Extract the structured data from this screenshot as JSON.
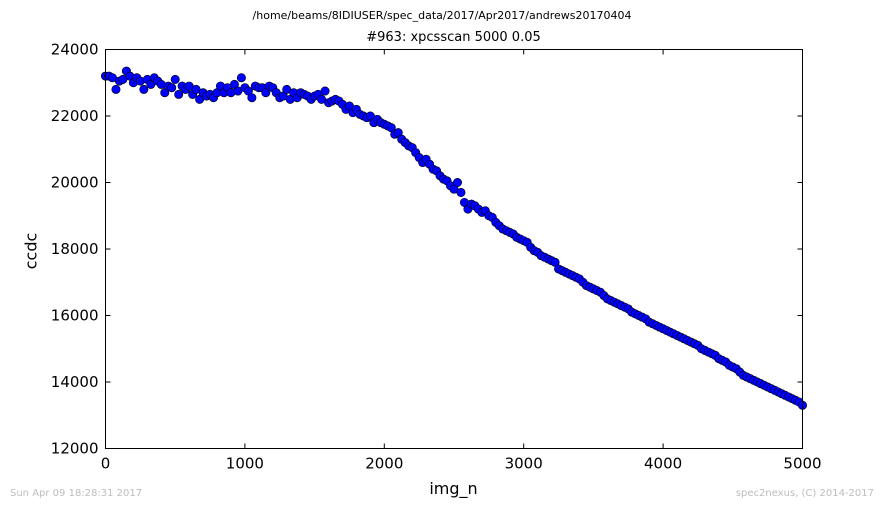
{
  "header": {
    "path": "/home/beams/8IDIUSER/spec_data/2017/Apr2017/andrews20170404"
  },
  "footer": {
    "timestamp": "Sun Apr 09 18:28:31 2017",
    "credit": "spec2nexus, (C) 2014-2017"
  },
  "chart_data": {
    "type": "scatter",
    "title": "#963: xpcsscan 5000 0.05",
    "xlabel": "img_n",
    "ylabel": "ccdc",
    "xlim": [
      0,
      5000
    ],
    "ylim": [
      12000,
      24000
    ],
    "xticks": [
      0,
      1000,
      2000,
      3000,
      4000,
      5000
    ],
    "yticks": [
      12000,
      14000,
      16000,
      18000,
      20000,
      22000,
      24000
    ],
    "grid": false,
    "marker_color": "#0000ff",
    "series": [
      {
        "x": [
          0,
          25,
          50,
          75,
          100,
          125,
          150,
          175,
          200,
          225,
          250,
          275,
          300,
          325,
          350,
          375,
          400,
          425,
          450,
          475,
          500,
          525,
          550,
          575,
          600,
          625,
          650,
          675,
          700,
          725,
          750,
          775,
          800,
          825,
          850,
          875,
          900,
          925,
          950,
          975,
          1000,
          1025,
          1050,
          1075,
          1100,
          1125,
          1150,
          1175,
          1200,
          1225,
          1250,
          1275,
          1300,
          1325,
          1350,
          1375,
          1400,
          1425,
          1450,
          1475,
          1500,
          1525,
          1550,
          1575,
          1600,
          1625,
          1650,
          1675,
          1700,
          1725,
          1750,
          1775,
          1800,
          1825,
          1850,
          1875,
          1900,
          1925,
          1950,
          1975,
          2000,
          2025,
          2050,
          2075,
          2100,
          2125,
          2150,
          2175,
          2200,
          2225,
          2250,
          2275,
          2300,
          2325,
          2350,
          2375,
          2400,
          2425,
          2450,
          2475,
          2500,
          2525,
          2550,
          2575,
          2600,
          2625,
          2650,
          2675,
          2700,
          2725,
          2750,
          2775,
          2800,
          2825,
          2850,
          2875,
          2900,
          2925,
          2950,
          2975,
          3000,
          3025,
          3050,
          3075,
          3100,
          3125,
          3150,
          3175,
          3200,
          3225,
          3250,
          3275,
          3300,
          3325,
          3350,
          3375,
          3400,
          3425,
          3450,
          3475,
          3500,
          3525,
          3550,
          3575,
          3600,
          3625,
          3650,
          3675,
          3700,
          3725,
          3750,
          3775,
          3800,
          3825,
          3850,
          3875,
          3900,
          3925,
          3950,
          3975,
          4000,
          4025,
          4050,
          4075,
          4100,
          4125,
          4150,
          4175,
          4200,
          4225,
          4250,
          4275,
          4300,
          4325,
          4350,
          4375,
          4400,
          4425,
          4450,
          4475,
          4500,
          4525,
          4550,
          4575,
          4600,
          4625,
          4650,
          4675,
          4700,
          4725,
          4750,
          4775,
          4800,
          4825,
          4850,
          4875,
          4900,
          4925,
          4950,
          4975,
          5000
        ],
        "y": [
          23200,
          23200,
          23150,
          22800,
          23050,
          23100,
          23350,
          23200,
          23000,
          23150,
          23050,
          22800,
          23100,
          22950,
          23150,
          23050,
          22950,
          22700,
          22900,
          22850,
          23100,
          22650,
          22900,
          22800,
          22900,
          22650,
          22800,
          22500,
          22700,
          22600,
          22650,
          22550,
          22700,
          22900,
          22700,
          22850,
          22700,
          22950,
          22750,
          23150,
          22850,
          22750,
          22550,
          22900,
          22850,
          22850,
          22700,
          22900,
          22850,
          22700,
          22550,
          22600,
          22800,
          22500,
          22700,
          22550,
          22700,
          22650,
          22600,
          22500,
          22600,
          22650,
          22500,
          22750,
          22400,
          22450,
          22500,
          22450,
          22350,
          22200,
          22300,
          22100,
          22200,
          22050,
          22000,
          21950,
          22000,
          21800,
          21900,
          21800,
          21750,
          21700,
          21650,
          21450,
          21500,
          21300,
          21200,
          21100,
          21050,
          20900,
          20750,
          20600,
          20700,
          20550,
          20400,
          20350,
          20200,
          20100,
          20050,
          19900,
          19800,
          20000,
          19700,
          19400,
          19200,
          19350,
          19300,
          19200,
          19100,
          19150,
          19000,
          18950,
          18800,
          18700,
          18600,
          18550,
          18500,
          18450,
          18350,
          18300,
          18250,
          18200,
          18050,
          17950,
          17900,
          17800,
          17750,
          17700,
          17650,
          17600,
          17400,
          17350,
          17300,
          17250,
          17200,
          17150,
          17100,
          17000,
          16900,
          16850,
          16800,
          16750,
          16700,
          16600,
          16500,
          16450,
          16400,
          16350,
          16300,
          16250,
          16200,
          16100,
          16050,
          16000,
          15950,
          15900,
          15800,
          15750,
          15700,
          15650,
          15600,
          15550,
          15500,
          15450,
          15400,
          15350,
          15300,
          15250,
          15200,
          15150,
          15100,
          15000,
          14950,
          14900,
          14850,
          14800,
          14700,
          14650,
          14600,
          14500,
          14450,
          14400,
          14300,
          14200,
          14150,
          14100,
          14050,
          14000,
          13950,
          13900,
          13850,
          13800,
          13750,
          13700,
          13650,
          13600,
          13550,
          13500,
          13450,
          13400,
          13300
        ]
      }
    ]
  }
}
